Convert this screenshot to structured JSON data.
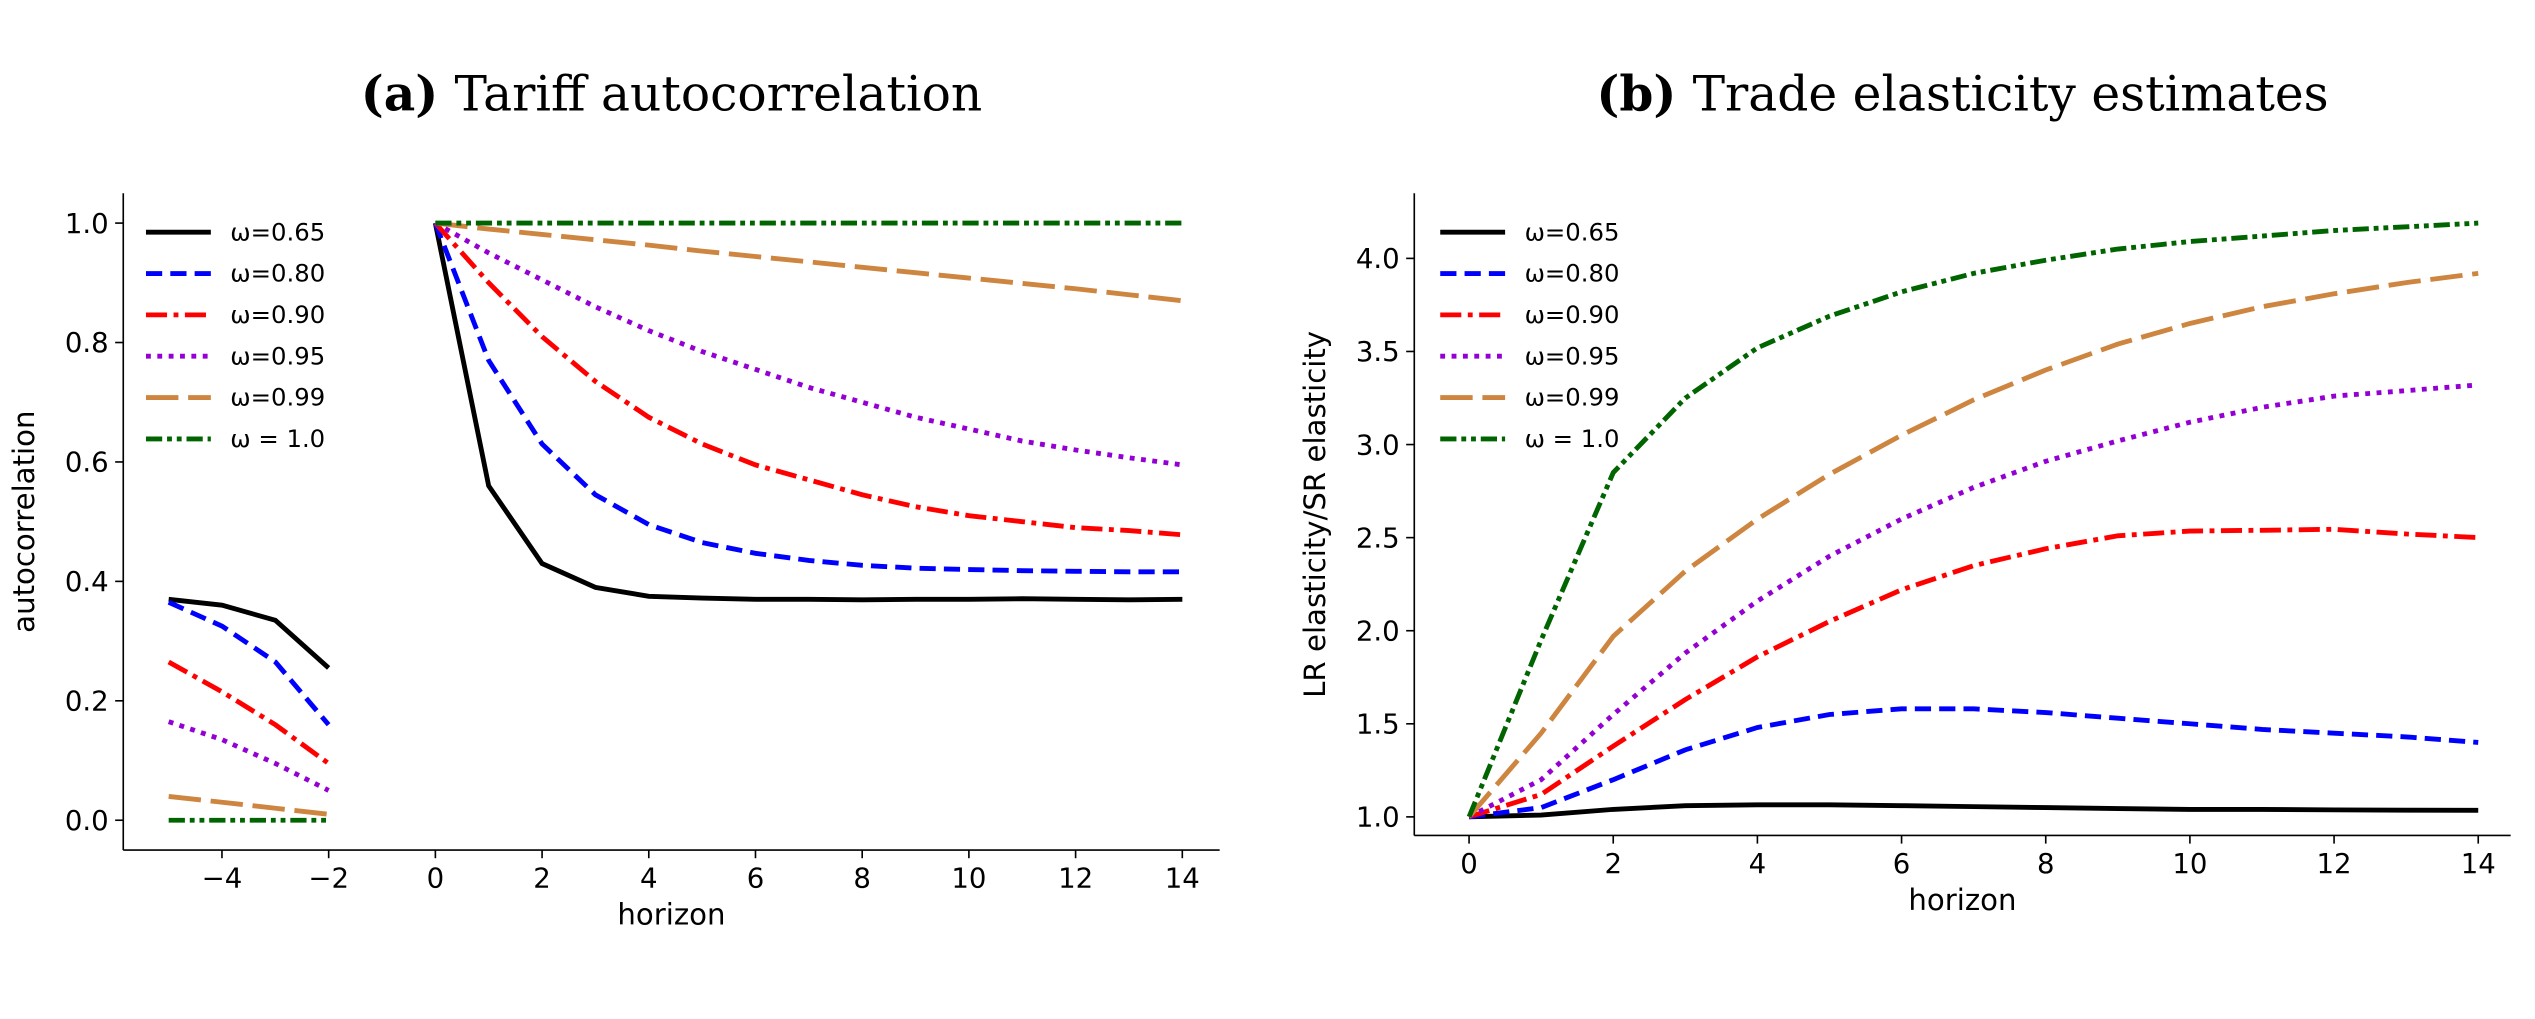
{
  "chart_data": [
    {
      "type": "line",
      "title_prefix": "(a)",
      "title": "Tariff autocorrelation",
      "xlabel": "horizon",
      "ylabel": "autocorrelation",
      "xlim": [
        -5.85,
        14.7
      ],
      "ylim": [
        -0.05,
        1.05
      ],
      "xticks": [
        -4,
        -2,
        0,
        2,
        4,
        6,
        8,
        10,
        12,
        14
      ],
      "yticks": [
        "0.0",
        "0.2",
        "0.4",
        "0.6",
        "0.8",
        "1.0"
      ],
      "grid": false,
      "legend_placement": "top-left",
      "x_pre": [
        -5,
        -4,
        -3,
        -2
      ],
      "x_post": [
        0,
        1,
        2,
        3,
        4,
        5,
        6,
        7,
        8,
        9,
        10,
        11,
        12,
        13,
        14
      ],
      "series": [
        {
          "name": "ω=0.65",
          "color": "#000000",
          "style": "solid",
          "pre": [
            0.37,
            0.36,
            0.335,
            0.255
          ],
          "post": [
            1.0,
            0.56,
            0.43,
            0.39,
            0.375,
            0.372,
            0.37,
            0.37,
            0.369,
            0.37,
            0.37,
            0.371,
            0.37,
            0.369,
            0.37
          ]
        },
        {
          "name": "ω=0.80",
          "color": "#0000ff",
          "style": "dashed",
          "pre": [
            0.365,
            0.325,
            0.265,
            0.16
          ],
          "post": [
            1.0,
            0.77,
            0.63,
            0.545,
            0.495,
            0.465,
            0.447,
            0.435,
            0.427,
            0.422,
            0.42,
            0.418,
            0.417,
            0.416,
            0.416
          ]
        },
        {
          "name": "ω=0.90",
          "color": "#ff0000",
          "style": "dashdot",
          "pre": [
            0.265,
            0.215,
            0.16,
            0.095
          ],
          "post": [
            1.0,
            0.9,
            0.81,
            0.735,
            0.675,
            0.63,
            0.595,
            0.57,
            0.545,
            0.525,
            0.51,
            0.5,
            0.49,
            0.485,
            0.478
          ]
        },
        {
          "name": "ω=0.95",
          "color": "#9400d3",
          "style": "dotted",
          "pre": [
            0.165,
            0.135,
            0.095,
            0.05
          ],
          "post": [
            1.0,
            0.95,
            0.905,
            0.86,
            0.82,
            0.785,
            0.755,
            0.725,
            0.7,
            0.675,
            0.655,
            0.635,
            0.62,
            0.607,
            0.595
          ]
        },
        {
          "name": "ω=0.99",
          "color": "#cd853f",
          "style": "longdash",
          "pre": [
            0.04,
            0.03,
            0.02,
            0.01
          ],
          "post": [
            1.0,
            0.99,
            0.981,
            0.972,
            0.963,
            0.953,
            0.944,
            0.935,
            0.926,
            0.917,
            0.908,
            0.899,
            0.89,
            0.88,
            0.87
          ]
        },
        {
          "name": "ω = 1.0",
          "color": "#006400",
          "style": "dashdotdot",
          "pre": [
            0,
            0,
            0,
            0
          ],
          "post": [
            1,
            1,
            1,
            1,
            1,
            1,
            1,
            1,
            1,
            1,
            1,
            1,
            1,
            1,
            1
          ]
        }
      ]
    },
    {
      "type": "line",
      "title_prefix": "(b)",
      "title": "Trade elasticity estimates",
      "xlabel": "horizon",
      "ylabel": "LR elasticity/SR elasticity",
      "xlim": [
        -0.76,
        14.45
      ],
      "ylim": [
        0.9,
        4.35
      ],
      "xticks": [
        0,
        2,
        4,
        6,
        8,
        10,
        12,
        14
      ],
      "yticks": [
        "1.0",
        "1.5",
        "2.0",
        "2.5",
        "3.0",
        "3.5",
        "4.0"
      ],
      "grid": false,
      "legend_placement": "top-left",
      "x": [
        0,
        1,
        2,
        3,
        4,
        5,
        6,
        7,
        8,
        9,
        10,
        11,
        12,
        13,
        14
      ],
      "series": [
        {
          "name": "ω=0.65",
          "color": "#000000",
          "style": "solid",
          "values": [
            1.0,
            1.01,
            1.04,
            1.06,
            1.065,
            1.065,
            1.06,
            1.055,
            1.05,
            1.045,
            1.04,
            1.04,
            1.038,
            1.036,
            1.035
          ]
        },
        {
          "name": "ω=0.80",
          "color": "#0000ff",
          "style": "dashed",
          "values": [
            1.0,
            1.05,
            1.2,
            1.36,
            1.48,
            1.55,
            1.58,
            1.58,
            1.56,
            1.53,
            1.5,
            1.47,
            1.45,
            1.43,
            1.4
          ]
        },
        {
          "name": "ω=0.90",
          "color": "#ff0000",
          "style": "dashdot",
          "values": [
            1.0,
            1.12,
            1.38,
            1.63,
            1.86,
            2.05,
            2.22,
            2.35,
            2.44,
            2.51,
            2.535,
            2.54,
            2.545,
            2.52,
            2.5
          ]
        },
        {
          "name": "ω=0.95",
          "color": "#9400d3",
          "style": "dotted",
          "values": [
            1.0,
            1.2,
            1.55,
            1.88,
            2.16,
            2.4,
            2.6,
            2.77,
            2.91,
            3.02,
            3.12,
            3.2,
            3.26,
            3.29,
            3.32
          ]
        },
        {
          "name": "ω=0.99",
          "color": "#cd853f",
          "style": "longdash",
          "values": [
            1.0,
            1.45,
            1.97,
            2.32,
            2.6,
            2.84,
            3.05,
            3.24,
            3.4,
            3.54,
            3.65,
            3.74,
            3.81,
            3.87,
            3.92
          ]
        },
        {
          "name": "ω = 1.0",
          "color": "#006400",
          "style": "dashdotdot",
          "values": [
            1.0,
            1.95,
            2.85,
            3.25,
            3.52,
            3.69,
            3.82,
            3.92,
            3.99,
            4.05,
            4.09,
            4.12,
            4.15,
            4.17,
            4.19
          ]
        }
      ]
    }
  ]
}
